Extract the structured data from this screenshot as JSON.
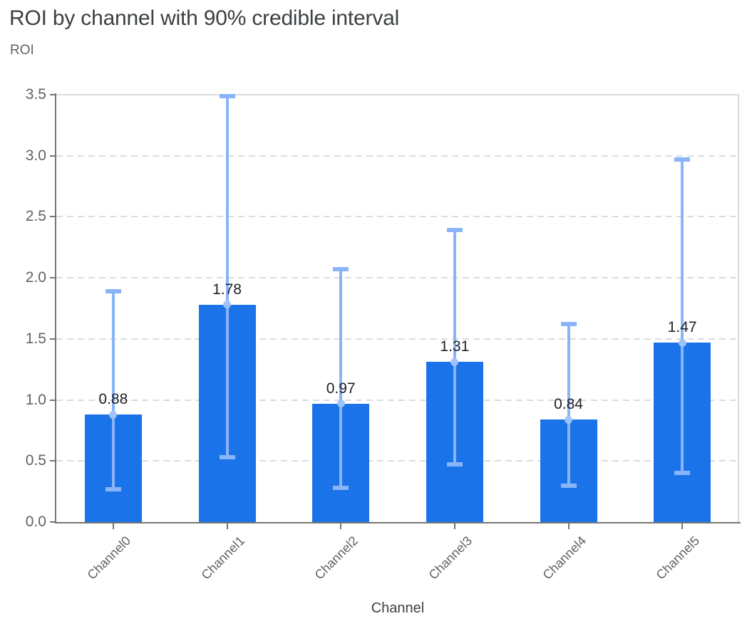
{
  "chart": {
    "title": "ROI by channel with 90% credible interval",
    "y_axis_label": "ROI",
    "x_axis_label": "Channel"
  },
  "chart_data": {
    "type": "bar",
    "title": "ROI by channel with 90% credible interval",
    "xlabel": "Channel",
    "ylabel": "ROI",
    "categories": [
      "Channel0",
      "Channel1",
      "Channel2",
      "Channel3",
      "Channel4",
      "Channel5"
    ],
    "values": [
      0.88,
      1.78,
      0.97,
      1.31,
      0.84,
      1.47
    ],
    "value_labels": [
      "0.88",
      "1.78",
      "0.97",
      "1.31",
      "0.84",
      "1.47"
    ],
    "error_bars": {
      "label": "90% credible interval",
      "lower": [
        0.27,
        0.53,
        0.28,
        0.47,
        0.3,
        0.4
      ],
      "upper": [
        1.89,
        3.49,
        2.07,
        2.39,
        1.62,
        2.97
      ]
    },
    "ylim": [
      0,
      3.5
    ],
    "y_ticks": [
      "0.0",
      "0.5",
      "1.0",
      "1.5",
      "2.0",
      "2.5",
      "3.0",
      "3.5"
    ],
    "grid": true,
    "legend": "none",
    "colors": {
      "bar": "#1a73e8",
      "error_bar": "#8ab4f8",
      "error_dot": "#a1c3fa",
      "grid": "#dadce0",
      "axis": "#757575",
      "tick_label": "#5f6368",
      "title": "#3c4043",
      "value_label": "#202124"
    }
  }
}
